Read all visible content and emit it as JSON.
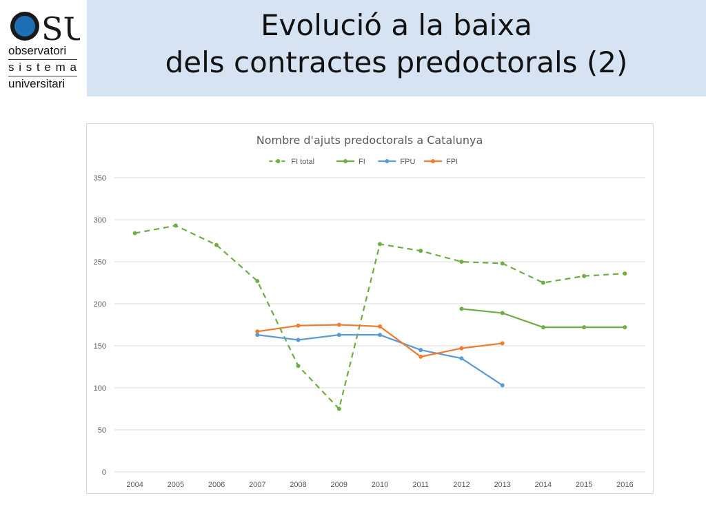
{
  "slide": {
    "title_line1": "Evolució a la baixa",
    "title_line2": "dels contractes predoctorals (2)"
  },
  "logo": {
    "letters": "OSU",
    "line1": "observatori",
    "line2": "s i s t e m a",
    "line3": "universitari",
    "colors": {
      "blue": "#1f6fb5",
      "dark": "#1a1a1a"
    }
  },
  "chart_data": {
    "type": "line",
    "title": "Nombre d'ajuts predoctorals a Catalunya",
    "xlabel": "",
    "ylabel": "",
    "categories": [
      "2004",
      "2005",
      "2006",
      "2007",
      "2008",
      "2009",
      "2010",
      "2011",
      "2012",
      "2013",
      "2014",
      "2015",
      "2016"
    ],
    "ylim": [
      0,
      350
    ],
    "yticks": [
      0,
      50,
      100,
      150,
      200,
      250,
      300,
      350
    ],
    "grid": true,
    "legend_position": "top",
    "series": [
      {
        "name": "FI total",
        "color": "#70ad47",
        "dashed": true,
        "values": [
          284,
          293,
          270,
          227,
          126,
          75,
          271,
          263,
          250,
          248,
          225,
          233,
          236
        ]
      },
      {
        "name": "FI",
        "color": "#70ad47",
        "dashed": false,
        "values": [
          null,
          null,
          null,
          null,
          null,
          null,
          null,
          null,
          194,
          189,
          172,
          172,
          172
        ]
      },
      {
        "name": "FPU",
        "color": "#5b9bd5",
        "dashed": false,
        "values": [
          null,
          null,
          null,
          163,
          157,
          163,
          163,
          145,
          135,
          103,
          null,
          null,
          null
        ]
      },
      {
        "name": "FPI",
        "color": "#ed7d31",
        "dashed": false,
        "values": [
          null,
          null,
          null,
          167,
          174,
          175,
          173,
          137,
          147,
          153,
          null,
          null,
          null
        ]
      }
    ]
  }
}
